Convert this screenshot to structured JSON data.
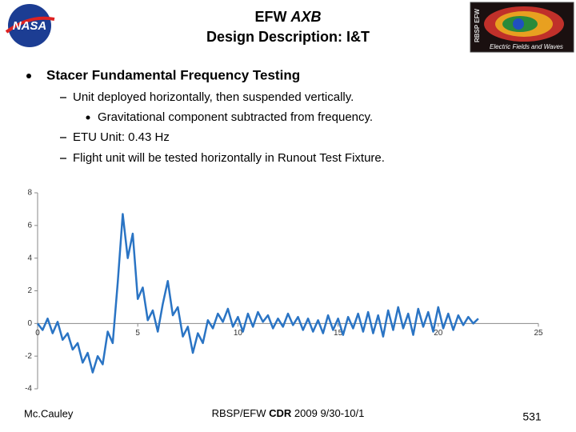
{
  "header": {
    "title_plain": "EFW",
    "title_italic": "AXB",
    "subtitle": "Design Description: I&T",
    "left_logo": "NASA",
    "right_logo_side": "RBSP EFW",
    "right_logo_caption": "Electric Fields and Waves"
  },
  "bullets": [
    {
      "text": "Stacer Fundamental Frequency Testing",
      "level": 1
    },
    {
      "text": "Unit deployed horizontally, then suspended vertically.",
      "level": 2
    },
    {
      "text": "Gravitational component subtracted from frequency.",
      "level": 3
    },
    {
      "text": "ETU Unit: 0.43 Hz",
      "level": 2
    },
    {
      "text": "Flight unit will be tested horizontally in Runout Test Fixture.",
      "level": 2
    }
  ],
  "footer": {
    "author": "Mc.Cauley",
    "center_before": "RBSP/EFW ",
    "center_bold": "CDR",
    "center_after": " 2009 9/30-10/1",
    "page": "531"
  },
  "chart_data": {
    "type": "line",
    "color": "#2a74c4",
    "x": [
      0,
      0.25,
      0.5,
      0.75,
      1,
      1.25,
      1.5,
      1.75,
      2,
      2.25,
      2.5,
      2.75,
      3,
      3.25,
      3.5,
      3.75,
      4,
      4.25,
      4.5,
      4.75,
      5,
      5.25,
      5.5,
      5.75,
      6,
      6.25,
      6.5,
      6.75,
      7,
      7.25,
      7.5,
      7.75,
      8,
      8.25,
      8.5,
      8.75,
      9,
      9.25,
      9.5,
      9.75,
      10,
      10.25,
      10.5,
      10.75,
      11,
      11.25,
      11.5,
      11.75,
      12,
      12.25,
      12.5,
      12.75,
      13,
      13.25,
      13.5,
      13.75,
      14,
      14.25,
      14.5,
      14.75,
      15,
      15.25,
      15.5,
      15.75,
      16,
      16.25,
      16.5,
      16.75,
      17,
      17.25,
      17.5,
      17.75,
      18,
      18.25,
      18.5,
      18.75,
      19,
      19.25,
      19.5,
      19.75,
      20,
      20.25,
      20.5,
      20.75,
      21,
      21.25,
      21.5,
      21.75,
      22
    ],
    "values": [
      0,
      -0.4,
      0.3,
      -0.6,
      0.1,
      -1.0,
      -0.6,
      -1.6,
      -1.2,
      -2.4,
      -1.8,
      -3.0,
      -2.0,
      -2.5,
      -0.5,
      -1.2,
      2.5,
      6.7,
      4.0,
      5.5,
      1.5,
      2.2,
      0.2,
      0.8,
      -0.5,
      1.2,
      2.6,
      0.5,
      1.0,
      -0.8,
      -0.2,
      -1.8,
      -0.6,
      -1.2,
      0.2,
      -0.3,
      0.6,
      0.1,
      0.9,
      -0.2,
      0.4,
      -0.5,
      0.6,
      -0.2,
      0.7,
      0.1,
      0.5,
      -0.3,
      0.3,
      -0.2,
      0.6,
      -0.1,
      0.4,
      -0.4,
      0.3,
      -0.5,
      0.2,
      -0.6,
      0.5,
      -0.4,
      0.3,
      -0.7,
      0.4,
      -0.3,
      0.6,
      -0.5,
      0.7,
      -0.6,
      0.5,
      -0.8,
      0.8,
      -0.4,
      1.0,
      -0.3,
      0.6,
      -0.7,
      0.9,
      -0.2,
      0.7,
      -0.5,
      1.0,
      -0.3,
      0.6,
      -0.4,
      0.5,
      -0.1,
      0.4,
      0.0,
      0.3
    ],
    "xlim": [
      0,
      25
    ],
    "xticks": [
      0,
      5,
      10,
      15,
      20,
      25
    ],
    "ylim": [
      -4,
      8
    ],
    "yticks": [
      -4,
      -2,
      0,
      2,
      4,
      6,
      8
    ]
  }
}
